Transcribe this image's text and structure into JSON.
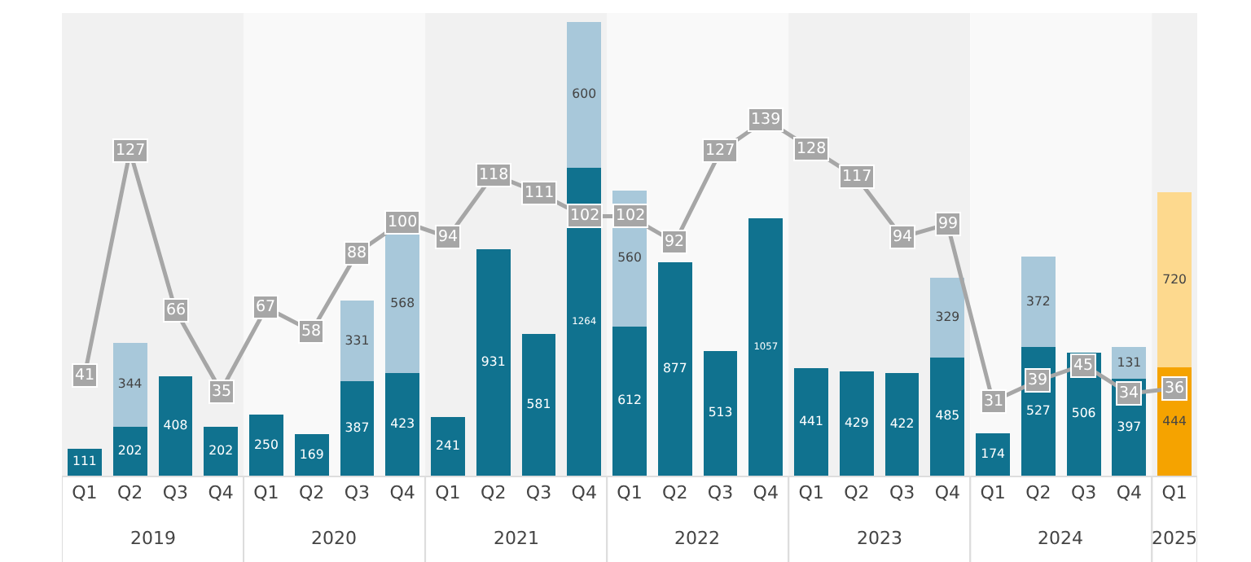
{
  "chart_data": {
    "type": "bar",
    "stacked": true,
    "data_labels": true,
    "tick_labels": "x",
    "grid": false,
    "categories": [
      "Q1",
      "Q2",
      "Q3",
      "Q4",
      "Q1",
      "Q2",
      "Q3",
      "Q4",
      "Q1",
      "Q2",
      "Q3",
      "Q4",
      "Q1",
      "Q2",
      "Q3",
      "Q4",
      "Q1",
      "Q2",
      "Q3",
      "Q4",
      "Q1",
      "Q2",
      "Q3",
      "Q4",
      "Q1"
    ],
    "annotations": [
      "2019",
      "2020",
      "2021",
      "2022",
      "2023",
      "2024",
      "2025"
    ],
    "ylim": [
      0,
      1900
    ],
    "y2lim": [
      2.5,
      180
    ],
    "series": [
      {
        "colors": [
          "#10728f",
          "#10728f",
          "#10728f",
          "#10728f",
          "#10728f",
          "#10728f",
          "#10728f",
          "#10728f",
          "#10728f",
          "#10728f",
          "#10728f",
          "#10728f",
          "#10728f",
          "#10728f",
          "#10728f",
          "#10728f",
          "#10728f",
          "#10728f",
          "#10728f",
          "#10728f",
          "#10728f",
          "#10728f",
          "#10728f",
          "#10728f",
          "#f5a300"
        ],
        "values": [
          111,
          202,
          408,
          202,
          250,
          169,
          387,
          423,
          241,
          931,
          581,
          1264,
          612,
          877,
          513,
          1057,
          441,
          429,
          422,
          485,
          174,
          527,
          506,
          397,
          444
        ]
      },
      {
        "colors": [
          "#a8c8da",
          "#a8c8da",
          "#a8c8da",
          "#a8c8da",
          "#a8c8da",
          "#a8c8da",
          "#a8c8da",
          "#a8c8da",
          "#a8c8da",
          "#a8c8da",
          "#a8c8da",
          "#a8c8da",
          "#a8c8da",
          "#a8c8da",
          "#a8c8da",
          "#a8c8da",
          "#a8c8da",
          "#a8c8da",
          "#a8c8da",
          "#a8c8da",
          "#a8c8da",
          "#a8c8da",
          "#a8c8da",
          "#a8c8da",
          "#fdd98e"
        ],
        "values": [
          null,
          344,
          null,
          null,
          null,
          null,
          331,
          568,
          null,
          null,
          null,
          600,
          560,
          null,
          null,
          null,
          null,
          null,
          null,
          329,
          null,
          372,
          null,
          131,
          720
        ]
      },
      {
        "type": "line",
        "axis": "y2",
        "color": "#a6a6a6",
        "marker": "square",
        "values": [
          41,
          127,
          66,
          35,
          67,
          58,
          88,
          100,
          94,
          118,
          111,
          102,
          102,
          92,
          127,
          139,
          128,
          117,
          94,
          99,
          31,
          39,
          45,
          34,
          36
        ]
      }
    ]
  }
}
